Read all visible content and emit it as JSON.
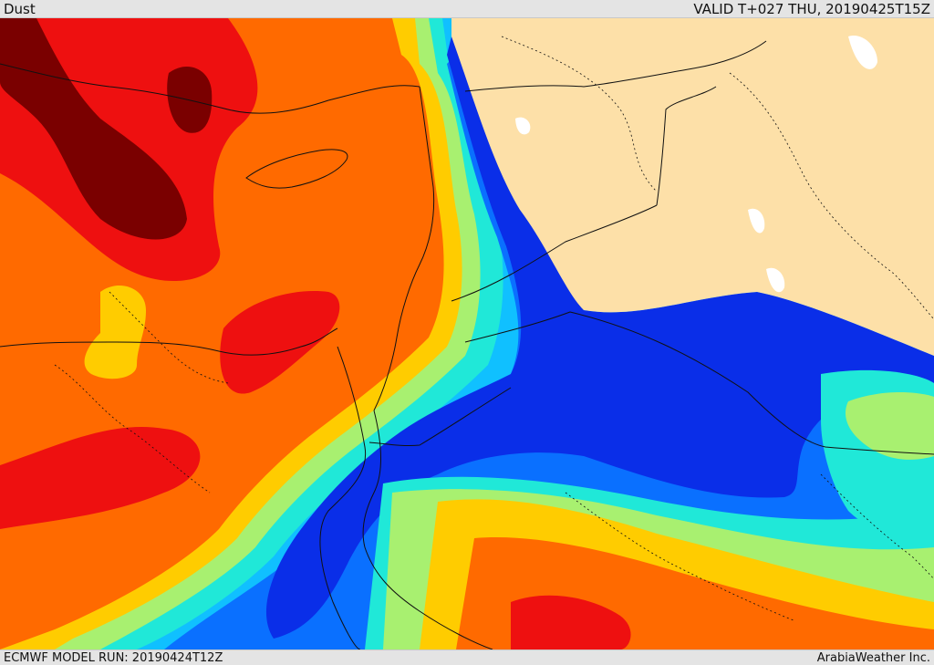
{
  "header": {
    "title": "Dust",
    "valid_time": "VALID T+027 THU, 20190425T15Z"
  },
  "footer": {
    "model_run": "ECMWF MODEL RUN: 20190424T12Z",
    "credit": "ArabiaWeather Inc."
  },
  "map": {
    "colors": {
      "darkred": "#7a0000",
      "red": "#ee1010",
      "orange": "#ff6a00",
      "orange2": "#ff9a00",
      "yellow": "#ffcc00",
      "lightgreen": "#a8f070",
      "green": "#5ef0a0",
      "cyan": "#20e8d8",
      "lightblue": "#10c0ff",
      "blue": "#0a70ff",
      "darkblue": "#0a2ee8",
      "land": "#fde0a8",
      "water": "#ffffff",
      "border": "#111111"
    }
  }
}
